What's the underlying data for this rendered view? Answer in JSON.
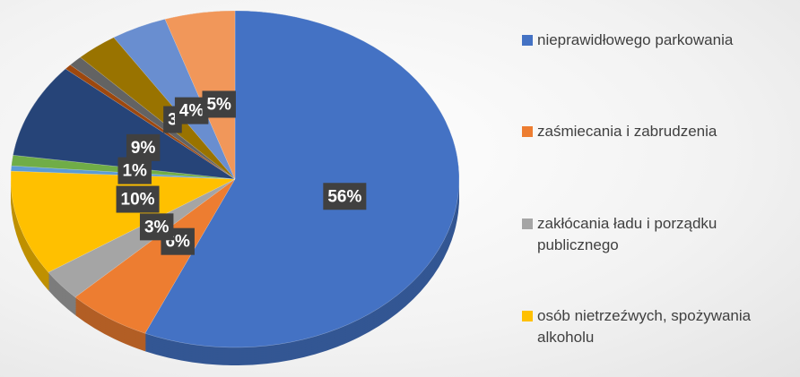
{
  "chart_data": {
    "type": "pie",
    "categories": [
      "nieprawidłowego parkowania",
      "zaśmiecania i zabrudzenia",
      "zakłócania ładu i porządku publicznego",
      "osób nietrzeźwych, spożywania alkoholu",
      null,
      null,
      null,
      null,
      null,
      null,
      null,
      null
    ],
    "values": [
      56,
      6,
      3,
      10,
      0.5,
      1,
      9,
      0.5,
      1,
      3,
      4,
      5
    ],
    "value_labels": [
      "56%",
      "6%",
      "3%",
      "10%",
      null,
      "1%",
      "9%",
      null,
      null,
      "3",
      "4%",
      "5%"
    ],
    "colors": [
      "#4472c4",
      "#ed7d31",
      "#a5a5a5",
      "#ffc000",
      "#5b9bd5",
      "#70ad47",
      "#264478",
      "#9e480e",
      "#636363",
      "#997300",
      "#698ed0",
      "#f1975a",
      "#b7b7b7"
    ],
    "legend": "right"
  }
}
